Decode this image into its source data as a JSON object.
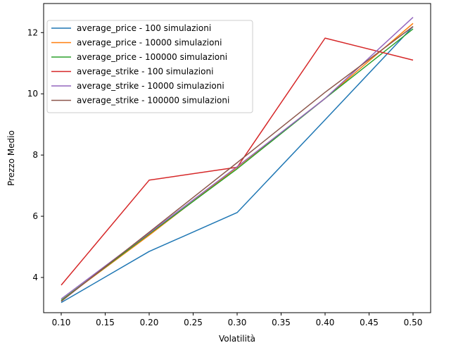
{
  "chart_data": {
    "type": "line",
    "title": "",
    "xlabel": "Volatilità",
    "ylabel": "Prezzo Medio",
    "x": [
      0.1,
      0.2,
      0.3,
      0.4,
      0.5
    ],
    "xlim": [
      0.08,
      0.52
    ],
    "ylim": [
      2.85,
      12.95
    ],
    "xticks": [
      "0.10",
      "0.15",
      "0.20",
      "0.25",
      "0.30",
      "0.35",
      "0.40",
      "0.45",
      "0.50"
    ],
    "xtick_values": [
      0.1,
      0.15,
      0.2,
      0.25,
      0.3,
      0.35,
      0.4,
      0.45,
      0.5
    ],
    "yticks": [
      "4",
      "6",
      "8",
      "10",
      "12"
    ],
    "ytick_values": [
      4,
      6,
      8,
      10,
      12
    ],
    "grid": false,
    "legend_position": "top-left",
    "series": [
      {
        "name": "average_price - 100 simulazioni",
        "color": "#1f77b4",
        "values": [
          3.18,
          4.85,
          6.12,
          9.15,
          12.2
        ]
      },
      {
        "name": "average_price - 10000 simulazioni",
        "color": "#ff7f0e",
        "values": [
          3.25,
          5.38,
          7.6,
          9.85,
          12.3
        ]
      },
      {
        "name": "average_price - 100000 simulazioni",
        "color": "#2ca02c",
        "values": [
          3.25,
          5.42,
          7.55,
          9.85,
          12.12
        ]
      },
      {
        "name": "average_strike - 100 simulazioni",
        "color": "#d62728",
        "values": [
          3.75,
          7.18,
          7.6,
          11.82,
          11.1
        ]
      },
      {
        "name": "average_strike - 10000 simulazioni",
        "color": "#9467bd",
        "values": [
          3.3,
          5.45,
          7.62,
          9.85,
          12.5
        ]
      },
      {
        "name": "average_strike - 100000 simulazioni",
        "color": "#8c564b",
        "values": [
          3.22,
          5.48,
          7.75,
          10.05,
          12.2
        ]
      }
    ]
  }
}
